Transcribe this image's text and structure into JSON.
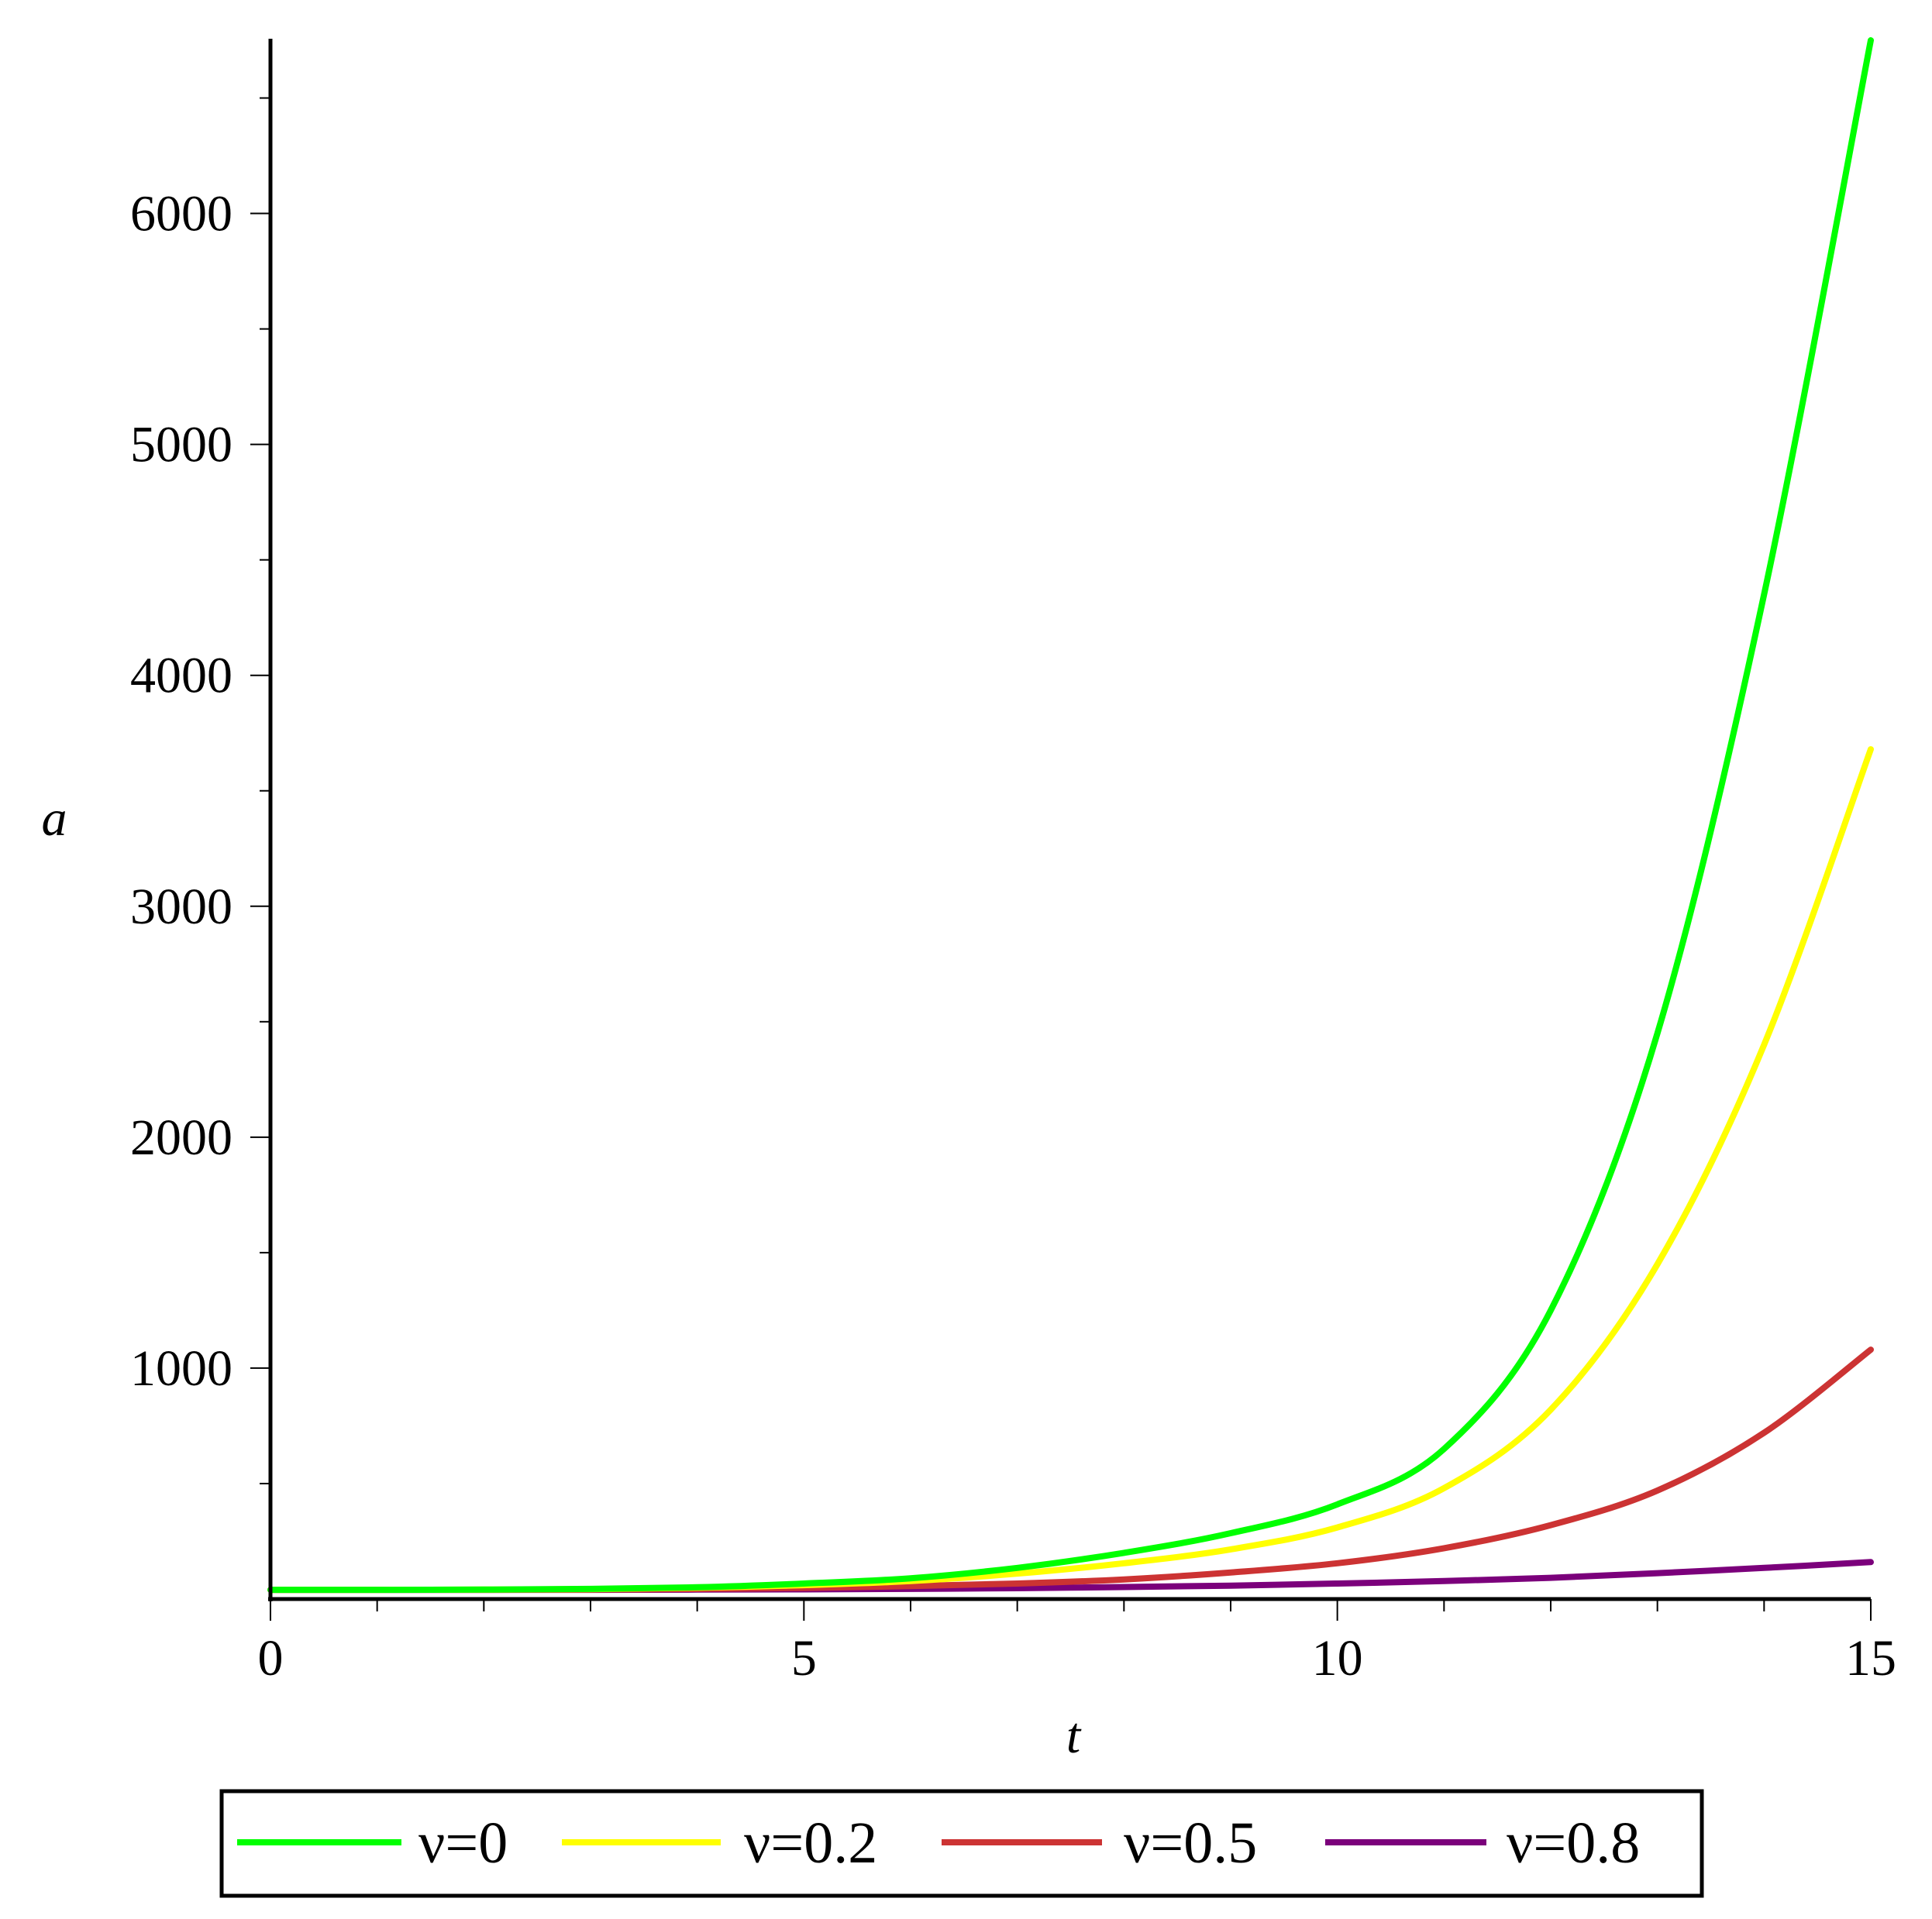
{
  "chart_data": {
    "type": "line",
    "xlabel": "t",
    "ylabel": "a",
    "xlim": [
      0,
      15
    ],
    "ylim": [
      0,
      6750
    ],
    "x_ticks": [
      0,
      5,
      10,
      15
    ],
    "x_tick_labels": [
      "0",
      "5",
      "10",
      "15"
    ],
    "y_ticks": [
      1000,
      2000,
      3000,
      4000,
      5000,
      6000
    ],
    "y_tick_labels": [
      "1000",
      "2000",
      "3000",
      "4000",
      "5000",
      "6000"
    ],
    "x_minor_step": 1,
    "y_minor_step": 500,
    "grid": false,
    "legend_position": "bottom",
    "x": [
      0,
      1,
      2,
      3,
      4,
      5,
      6,
      7,
      8,
      9,
      10,
      11,
      12,
      13,
      14,
      15
    ],
    "series": [
      {
        "name": "ν=0",
        "color": "#00ff00",
        "values": [
          40,
          40,
          41,
          44,
          51,
          67,
          90,
          135,
          200,
          285,
          410,
          650,
          1250,
          2450,
          4350,
          6750
        ]
      },
      {
        "name": "ν=0.2",
        "color": "#ffff00",
        "values": [
          40,
          40,
          41,
          43,
          49,
          60,
          78,
          110,
          155,
          215,
          310,
          480,
          820,
          1450,
          2400,
          3680
        ]
      },
      {
        "name": "ν=0.5",
        "color": "#cc3333",
        "values": [
          40,
          40,
          40,
          41,
          44,
          48,
          56,
          67,
          85,
          115,
          155,
          220,
          320,
          470,
          720,
          1080
        ]
      },
      {
        "name": "ν=0.8",
        "color": "#7b007b",
        "values": [
          40,
          40,
          40,
          40,
          41,
          42,
          44,
          47,
          52,
          58,
          67,
          78,
          92,
          112,
          135,
          160
        ]
      }
    ]
  }
}
